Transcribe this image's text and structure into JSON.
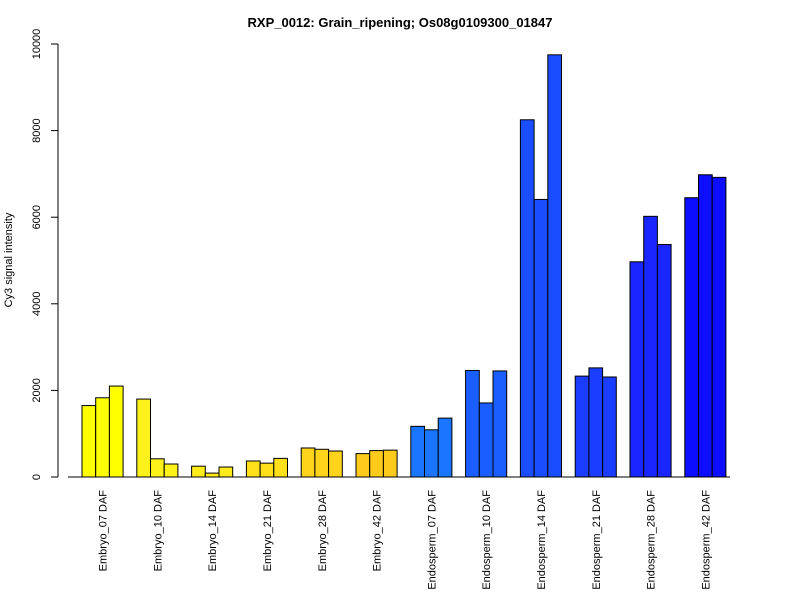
{
  "chart_data": {
    "type": "bar",
    "title": "RXP_0012: Grain_ripening; Os08g0109300_01847",
    "xlabel": "",
    "ylabel": "Cy3 signal intensity",
    "ylim": [
      0,
      10000
    ],
    "yticks": [
      0,
      2000,
      4000,
      6000,
      8000,
      10000
    ],
    "grid": false,
    "legend": "none",
    "categories": [
      "Embryo_07 DAF",
      "Embryo_10 DAF",
      "Embryo_14 DAF",
      "Embryo_21 DAF",
      "Embryo_28 DAF",
      "Embryo_42 DAF",
      "Endosperm_07 DAF",
      "Endosperm_10 DAF",
      "Endosperm_14 DAF",
      "Endosperm_21 DAF",
      "Endosperm_28 DAF",
      "Endosperm_42 DAF"
    ],
    "category_colors": [
      "#FFFF00",
      "#FFF21A",
      "#FFEB1A",
      "#FFE01A",
      "#FFD41A",
      "#FFCB1A",
      "#1A75FF",
      "#1A5EFF",
      "#1A4DFF",
      "#1A3DFF",
      "#1A26FF",
      "#0D0DFF"
    ],
    "replicates_per_category": 3,
    "values": [
      [
        1650,
        1830,
        2100
      ],
      [
        1800,
        420,
        300
      ],
      [
        250,
        90,
        230
      ],
      [
        370,
        320,
        430
      ],
      [
        670,
        640,
        600
      ],
      [
        540,
        610,
        620
      ],
      [
        1170,
        1090,
        1360
      ],
      [
        2460,
        1710,
        2450
      ],
      [
        8250,
        6410,
        9750
      ],
      [
        2330,
        2520,
        2310
      ],
      [
        4970,
        6020,
        5370
      ],
      [
        6450,
        6980,
        6920
      ]
    ]
  }
}
